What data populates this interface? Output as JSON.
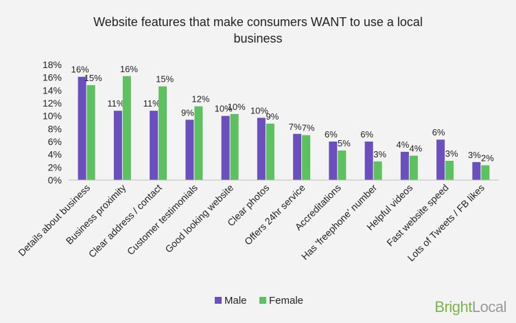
{
  "brand": {
    "part1": "Bright",
    "part2": "Local"
  },
  "chart_data": {
    "type": "bar",
    "title_lines": [
      "Website features that make consumers WANT to use a local",
      "business"
    ],
    "categories": [
      "Details about business",
      "Business proximity",
      "Clear address / contact",
      "Customer testimonials",
      "Good looking website",
      "Clear photos",
      "Offers 24hr service",
      "Accreditations",
      "Has 'freephone' number",
      "Helpful videos",
      "Fast website speed",
      "Lots of Tweets / FB likes"
    ],
    "series": [
      {
        "name": "Male",
        "color": "#6a4fbd",
        "values": [
          16.1,
          10.8,
          10.8,
          9.4,
          10.0,
          9.7,
          7.2,
          6.0,
          6.0,
          4.4,
          6.3,
          2.8
        ],
        "labels": [
          "16%",
          "11%",
          "11%",
          "9%",
          "10%",
          "10%",
          "7%",
          "6%",
          "6%",
          "4%",
          "6%",
          "3%"
        ]
      },
      {
        "name": "Female",
        "color": "#5cc15e",
        "values": [
          14.8,
          16.2,
          14.6,
          11.5,
          10.3,
          8.8,
          7.0,
          4.6,
          2.9,
          3.8,
          3.0,
          2.3
        ],
        "labels": [
          "15%",
          "16%",
          "15%",
          "12%",
          "10%",
          "9%",
          "7%",
          "5%",
          "3%",
          "4%",
          "3%",
          "2%"
        ]
      }
    ],
    "y_ticks": [
      "0%",
      "2%",
      "4%",
      "6%",
      "8%",
      "10%",
      "12%",
      "14%",
      "16%",
      "18%"
    ],
    "ylim": [
      0,
      18
    ],
    "grid": false,
    "legend_position": "bottom-center"
  }
}
